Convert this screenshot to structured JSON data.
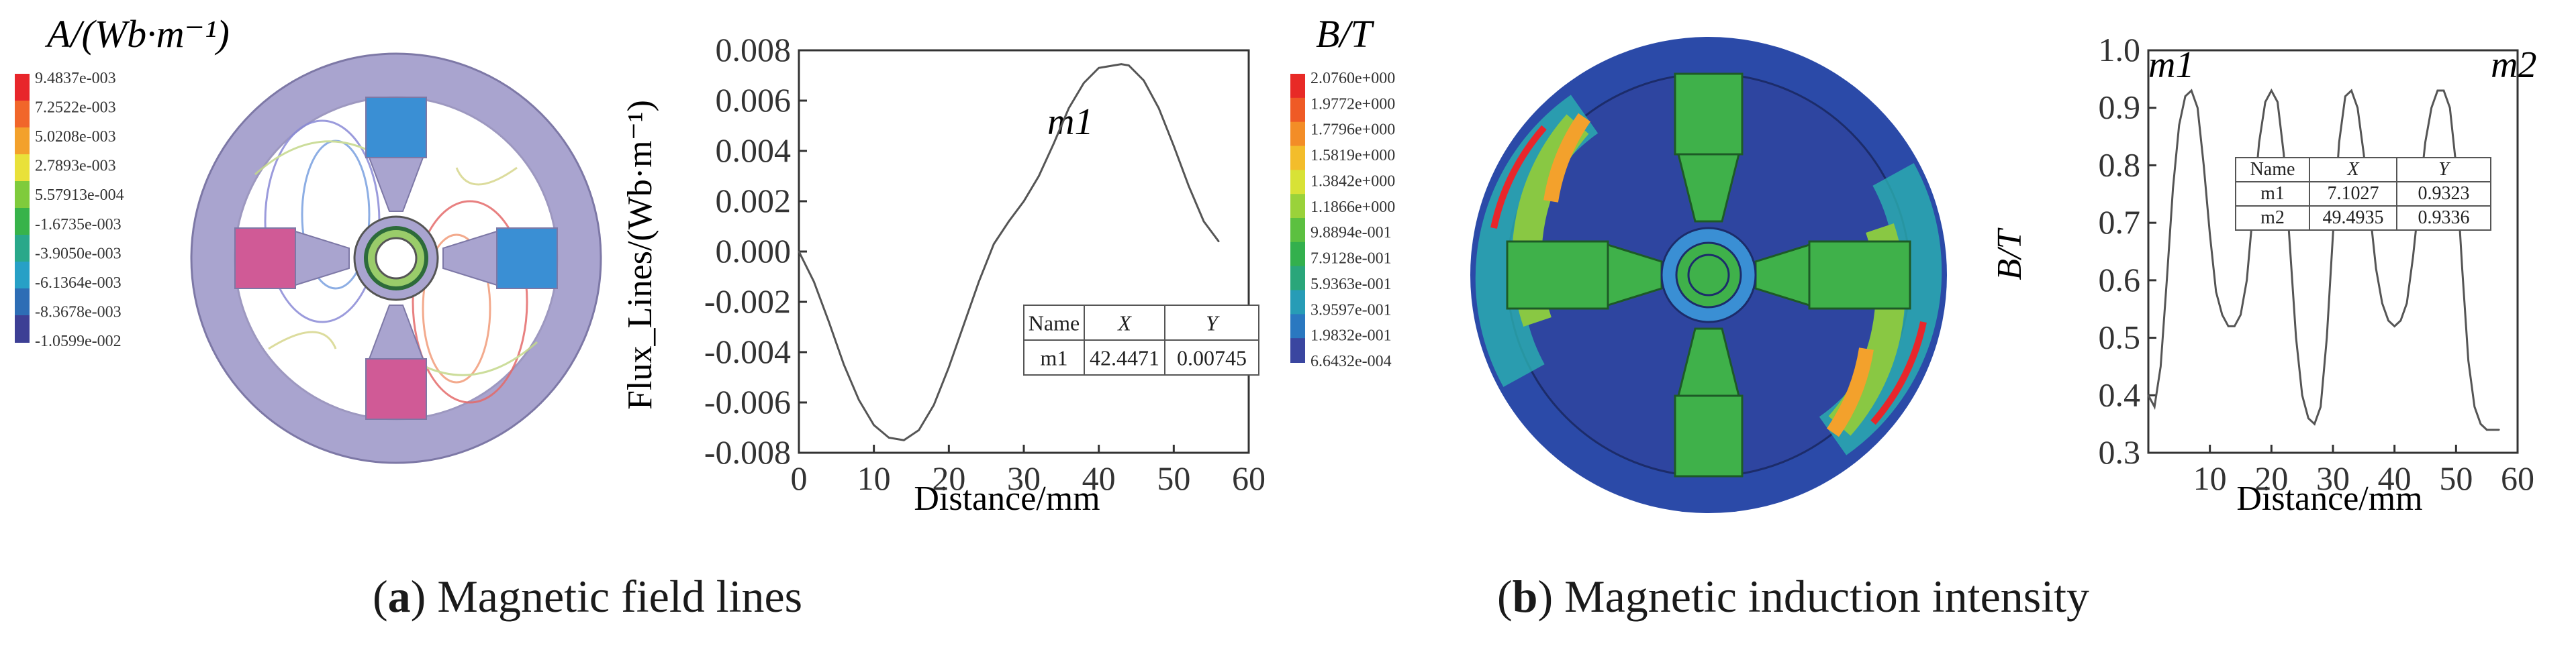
{
  "panel_a": {
    "legend_title": "A/(Wb·m⁻¹)",
    "legend_values": [
      "9.4837e-003",
      "7.2522e-003",
      "5.0208e-003",
      "2.7893e-003",
      "5.57913e-004",
      "-1.6735e-003",
      "-3.9050e-003",
      "-6.1364e-003",
      "-8.3678e-003",
      "-1.0599e-002"
    ],
    "legend_colors": [
      "#e8262b",
      "#f1662a",
      "#f3a12c",
      "#e9e13a",
      "#7fcb3c",
      "#37b34a",
      "#29a88a",
      "#27a0c6",
      "#2d6db5",
      "#3d3f95"
    ],
    "caption_label": "a",
    "caption_text": "Magnetic field lines"
  },
  "panel_b": {
    "legend_title": "B/T",
    "legend_values": [
      "2.0760e+000",
      "1.9772e+000",
      "1.7796e+000",
      "1.5819e+000",
      "1.3842e+000",
      "1.1866e+000",
      "9.8894e-001",
      "7.9128e-001",
      "5.9363e-001",
      "3.9597e-001",
      "1.9832e-001",
      "6.6432e-004"
    ],
    "legend_colors": [
      "#e82a26",
      "#ef5a25",
      "#f38d27",
      "#f3bd2b",
      "#d8e236",
      "#9ad23a",
      "#5cc040",
      "#33b04d",
      "#2aa67a",
      "#279cb6",
      "#2a78c0",
      "#3a46a0"
    ],
    "caption_label": "b",
    "caption_text": "Magnetic induction intensity"
  },
  "chart_data": [
    {
      "type": "line",
      "title": "",
      "xlabel": "Distance/mm",
      "ylabel": "Flux_Lines/(Wb·m⁻¹)",
      "xlim": [
        0,
        60
      ],
      "ylim": [
        -0.008,
        0.008
      ],
      "xticks": [
        "0",
        "10",
        "20",
        "30",
        "40",
        "50",
        "60"
      ],
      "yticks": [
        "0.008",
        "0.006",
        "0.004",
        "0.002",
        "0.000",
        "-0.002",
        "-0.004",
        "-0.006",
        "-0.008"
      ],
      "x": [
        0,
        2,
        4,
        6,
        8,
        10,
        12,
        14,
        16,
        18,
        20,
        22,
        24,
        26,
        28,
        30,
        32,
        34,
        36,
        38,
        40,
        42,
        43,
        44,
        46,
        48,
        50,
        52,
        54,
        56
      ],
      "y": [
        0,
        -0.0012,
        -0.0028,
        -0.0045,
        -0.0059,
        -0.0069,
        -0.0074,
        -0.0075,
        -0.0071,
        -0.0061,
        -0.0046,
        -0.0029,
        -0.0012,
        0.0003,
        0.0012,
        0.002,
        0.003,
        0.0043,
        0.0057,
        0.0067,
        0.0073,
        0.0074,
        0.00745,
        0.0074,
        0.0068,
        0.0057,
        0.0042,
        0.0026,
        0.0012,
        0.0004
      ],
      "marker_label": "m1",
      "table": {
        "headers": [
          "Name",
          "X",
          "Y"
        ],
        "rows": [
          [
            "m1",
            "42.4471",
            "0.00745"
          ]
        ]
      }
    },
    {
      "type": "line",
      "title": "",
      "xlabel": "Distance/mm",
      "ylabel": "B/T",
      "xlim": [
        0,
        60
      ],
      "ylim": [
        0.3,
        1.0
      ],
      "xticks": [
        "10",
        "20",
        "30",
        "40",
        "50",
        "60"
      ],
      "yticks": [
        "1.0",
        "0.9",
        "0.8",
        "0.7",
        "0.6",
        "0.5",
        "0.4",
        "0.3"
      ],
      "x": [
        0,
        1,
        2,
        3,
        4,
        5,
        6,
        7,
        8,
        9,
        10,
        11,
        12,
        13,
        14,
        15,
        16,
        17,
        18,
        19,
        20,
        21,
        22,
        23,
        24,
        25,
        26,
        27,
        28,
        29,
        30,
        31,
        32,
        33,
        34,
        35,
        36,
        37,
        38,
        39,
        40,
        41,
        42,
        43,
        44,
        45,
        46,
        47,
        48,
        49,
        50,
        51,
        52,
        53,
        54,
        55,
        56,
        57
      ],
      "y": [
        0.4,
        0.38,
        0.45,
        0.6,
        0.76,
        0.87,
        0.92,
        0.93,
        0.9,
        0.8,
        0.68,
        0.58,
        0.54,
        0.52,
        0.52,
        0.54,
        0.6,
        0.72,
        0.84,
        0.91,
        0.93,
        0.91,
        0.82,
        0.66,
        0.5,
        0.4,
        0.36,
        0.35,
        0.38,
        0.5,
        0.68,
        0.84,
        0.92,
        0.93,
        0.9,
        0.82,
        0.72,
        0.62,
        0.56,
        0.53,
        0.52,
        0.53,
        0.56,
        0.64,
        0.74,
        0.84,
        0.9,
        0.93,
        0.93,
        0.9,
        0.8,
        0.62,
        0.46,
        0.38,
        0.35,
        0.34,
        0.34,
        0.34
      ],
      "marker_labels": [
        "m1",
        "m2"
      ],
      "table": {
        "headers": [
          "Name",
          "X",
          "Y"
        ],
        "rows": [
          [
            "m1",
            "7.1027",
            "0.9323"
          ],
          [
            "m2",
            "49.4935",
            "0.9336"
          ]
        ]
      }
    }
  ]
}
